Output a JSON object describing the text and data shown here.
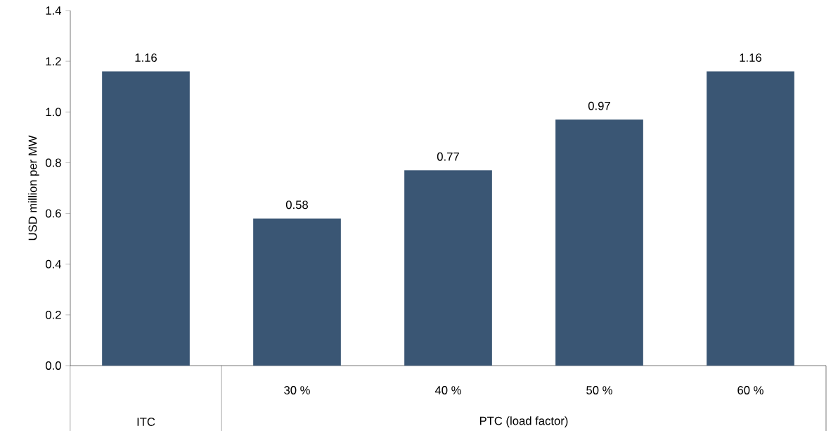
{
  "chart_data": {
    "type": "bar",
    "ylabel": "USD million per MW",
    "categories": [
      null,
      "30 %",
      "40 %",
      "50 %",
      "60 %"
    ],
    "values": [
      1.16,
      0.58,
      0.77,
      0.97,
      1.16
    ],
    "color": "#3a5674",
    "data_labels": true,
    "grid": false,
    "ylim": [
      0,
      1.4
    ],
    "yticks": [
      {
        "value": 0,
        "label": "0.0"
      },
      0.2,
      0.4,
      0.6,
      0.8,
      {
        "value": 1,
        "label": "1.0"
      },
      1.2,
      1.4
    ],
    "annotations": [
      "ITC",
      "PTC (load factor)"
    ]
  }
}
